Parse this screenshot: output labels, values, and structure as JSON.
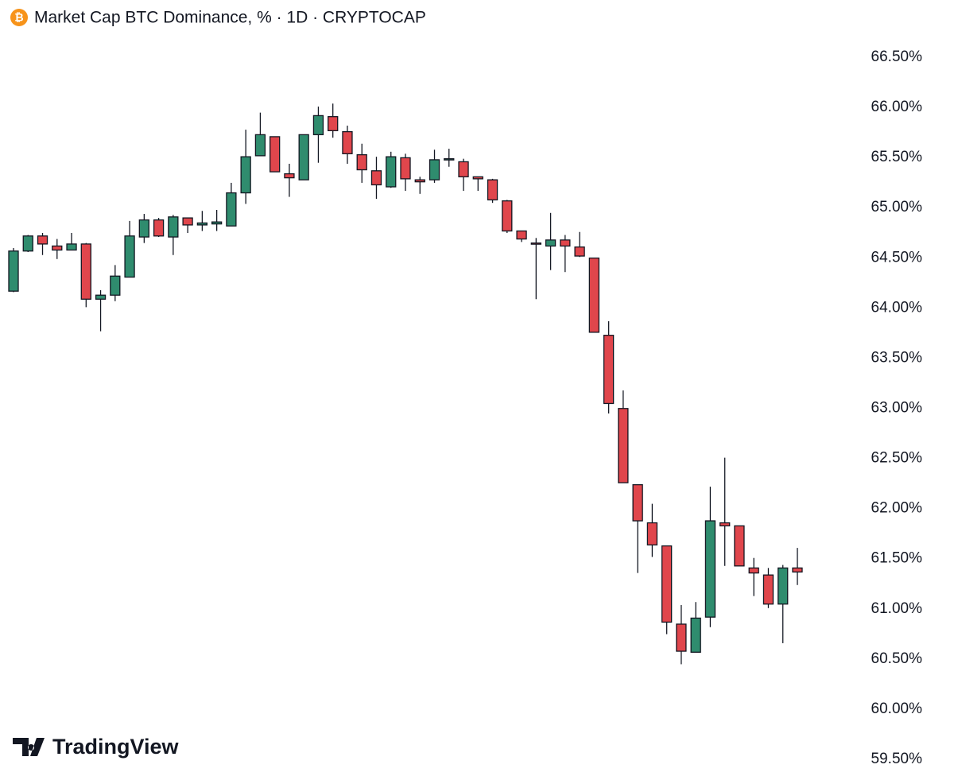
{
  "chart_data": {
    "type": "candlestick",
    "title": "Market Cap BTC Dominance, % · 1D · CRYPTOCAP",
    "brand": "TradingView",
    "up_color": "#2f8c6e",
    "down_color": "#e0464c",
    "outline_color": "#131722",
    "ylim": [
      59.5,
      66.5
    ],
    "yticks": [
      {
        "value": 59.5,
        "label": "59.50%"
      },
      {
        "value": 60,
        "label": "60.00%"
      },
      {
        "value": 60.5,
        "label": "60.50%"
      },
      {
        "value": 61,
        "label": "61.00%"
      },
      {
        "value": 61.5,
        "label": "61.50%"
      },
      {
        "value": 62,
        "label": "62.00%"
      },
      {
        "value": 62.5,
        "label": "62.50%"
      },
      {
        "value": 63,
        "label": "63.00%"
      },
      {
        "value": 63.5,
        "label": "63.50%"
      },
      {
        "value": 64,
        "label": "64.00%"
      },
      {
        "value": 64.5,
        "label": "64.50%"
      },
      {
        "value": 65,
        "label": "65.00%"
      },
      {
        "value": 65.5,
        "label": "65.50%"
      },
      {
        "value": 66,
        "label": "66.00%"
      },
      {
        "value": 66.5,
        "label": "66.50%"
      }
    ],
    "open": [
      64.16,
      64.56,
      64.71,
      64.61,
      64.57,
      64.63,
      64.08,
      64.12,
      64.3,
      64.7,
      64.87,
      64.7,
      64.89,
      64.82,
      64.83,
      64.81,
      65.14,
      65.51,
      65.7,
      65.33,
      65.27,
      65.72,
      65.9,
      65.75,
      65.52,
      65.36,
      65.2,
      65.49,
      65.27,
      65.27,
      65.47,
      65.45,
      65.3,
      65.27,
      65.06,
      64.76,
      64.64,
      64.61,
      64.67,
      64.6,
      64.49,
      63.72,
      62.99,
      62.23,
      61.85,
      61.62,
      60.84,
      60.56,
      60.91,
      61.85,
      61.82,
      61.4,
      61.33,
      61.04,
      61.4
    ],
    "high": [
      64.59,
      64.72,
      64.74,
      64.68,
      64.74,
      64.64,
      64.17,
      64.42,
      64.86,
      64.93,
      64.89,
      64.92,
      64.89,
      64.96,
      64.97,
      65.24,
      65.77,
      65.94,
      65.7,
      65.43,
      65.72,
      66.0,
      66.03,
      65.81,
      65.63,
      65.5,
      65.55,
      65.53,
      65.3,
      65.57,
      65.58,
      65.48,
      65.3,
      65.28,
      65.07,
      64.76,
      64.69,
      64.94,
      64.72,
      64.75,
      64.49,
      63.86,
      63.17,
      62.23,
      62.04,
      61.62,
      61.03,
      61.06,
      62.21,
      62.5,
      61.82,
      61.5,
      61.4,
      61.43,
      61.6
    ],
    "low": [
      64.15,
      64.55,
      64.52,
      64.48,
      64.57,
      64.0,
      63.76,
      64.06,
      64.3,
      64.64,
      64.7,
      64.52,
      64.74,
      64.76,
      64.76,
      64.81,
      65.03,
      65.51,
      65.35,
      65.1,
      65.27,
      65.44,
      65.69,
      65.43,
      65.24,
      65.08,
      65.19,
      65.16,
      65.13,
      65.24,
      65.4,
      65.16,
      65.16,
      65.04,
      64.74,
      64.65,
      64.08,
      64.37,
      64.35,
      64.5,
      63.75,
      62.94,
      62.25,
      61.35,
      61.51,
      60.74,
      60.44,
      60.56,
      60.81,
      61.42,
      61.42,
      61.12,
      61.0,
      60.65,
      61.23
    ],
    "close": [
      64.56,
      64.71,
      64.63,
      64.57,
      64.63,
      64.08,
      64.12,
      64.31,
      64.71,
      64.87,
      64.71,
      64.9,
      64.82,
      64.84,
      64.85,
      65.14,
      65.5,
      65.72,
      65.35,
      65.29,
      65.72,
      65.91,
      65.76,
      65.53,
      65.37,
      65.22,
      65.5,
      65.28,
      65.25,
      65.47,
      65.48,
      65.3,
      65.28,
      65.07,
      64.76,
      64.68,
      64.63,
      64.67,
      64.61,
      64.51,
      63.75,
      63.04,
      62.25,
      61.87,
      61.63,
      60.86,
      60.57,
      60.9,
      61.87,
      61.82,
      61.42,
      61.35,
      61.04,
      61.4,
      61.36
    ]
  }
}
